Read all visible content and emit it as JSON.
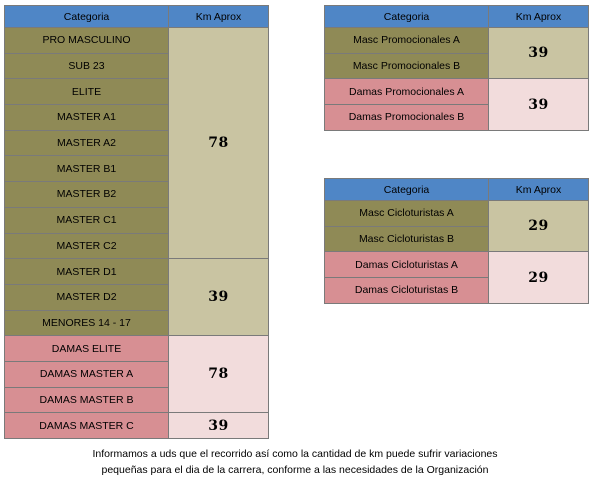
{
  "left_table": {
    "header": {
      "categoria": "Categoria",
      "km": "Km Aprox"
    },
    "groups": [
      {
        "color": "olive",
        "km": "78",
        "categories": [
          "PRO MASCULINO",
          "SUB 23",
          "ELITE",
          "MASTER A1",
          "MASTER A2",
          "MASTER B1",
          "MASTER B2",
          "MASTER C1",
          "MASTER C2"
        ]
      },
      {
        "color": "olive",
        "km": "39",
        "categories": [
          "MASTER D1",
          "MASTER D2",
          "MENORES 14 - 17"
        ]
      },
      {
        "color": "rose",
        "km": "78",
        "categories": [
          "DAMAS ELITE",
          "DAMAS MASTER A",
          "DAMAS MASTER B"
        ]
      },
      {
        "color": "rose",
        "km": "39",
        "categories": [
          "DAMAS MASTER C"
        ]
      }
    ]
  },
  "promo_table": {
    "header": {
      "categoria": "Categoria",
      "km": "Km Aprox"
    },
    "groups": [
      {
        "color": "olive",
        "km": "39",
        "categories": [
          "Masc Promocionales A",
          "Masc Promocionales B"
        ]
      },
      {
        "color": "rose",
        "km": "39",
        "categories": [
          "Damas Promocionales A",
          "Damas Promocionales B"
        ]
      }
    ]
  },
  "ciclo_table": {
    "header": {
      "categoria": "Categoria",
      "km": "Km Aprox"
    },
    "groups": [
      {
        "color": "olive",
        "km": "29",
        "categories": [
          "Masc Cicloturistas A",
          "Masc Cicloturistas B"
        ]
      },
      {
        "color": "rose",
        "km": "29",
        "categories": [
          "Damas Cicloturistas A",
          "Damas Cicloturistas B"
        ]
      }
    ]
  },
  "notice": {
    "line1": "Informamos a uds que el recorrido así como la cantidad de km puede sufrir variaciones",
    "line2": "pequeñas para el dia de la carrera, conforme a las necesidades de la Organización"
  },
  "colors": {
    "header": "#4f86c6",
    "olive_category": "#8f8a56",
    "olive_km": "#c9c4a2",
    "rose_category": "#d78f93",
    "rose_km": "#f2dcdc"
  }
}
